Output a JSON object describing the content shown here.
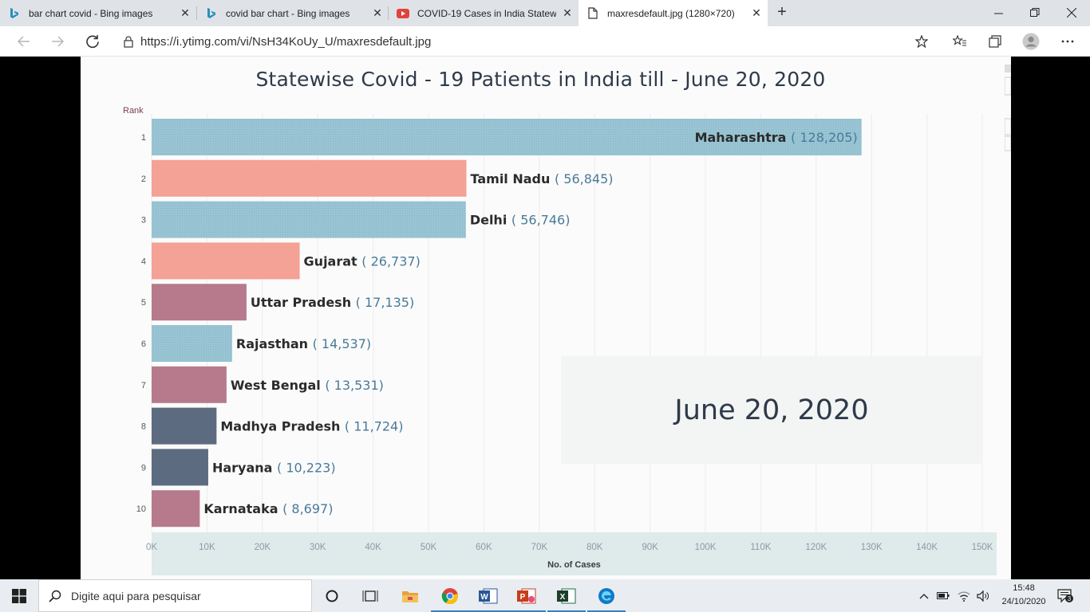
{
  "browser": {
    "tabs": [
      {
        "title": "bar chart covid - Bing images",
        "icon": "bing-icon",
        "active": false
      },
      {
        "title": "covid bar chart - Bing images",
        "icon": "bing-icon",
        "active": false
      },
      {
        "title": "COVID-19 Cases in India Statewi",
        "icon": "youtube-icon",
        "active": false
      },
      {
        "title": "maxresdefault.jpg (1280×720)",
        "icon": "page-icon",
        "active": true
      }
    ],
    "new_tab_label": "+",
    "url": "https://i.ytimg.com/vi/NsH34KoUy_U/maxresdefault.jpg",
    "colors": {
      "tabstrip": "#dfe3e8",
      "accent": "#3a7fc4"
    }
  },
  "chart_data": {
    "type": "bar",
    "orientation": "horizontal",
    "title": "Statewise Covid - 19 Patients in India till - June 20, 2020",
    "rank_header": "Rank",
    "xlabel": "No. of Cases",
    "xlim": [
      0,
      150000
    ],
    "xticks": [
      "0K",
      "10K",
      "20K",
      "30K",
      "40K",
      "50K",
      "60K",
      "70K",
      "80K",
      "90K",
      "100K",
      "110K",
      "120K",
      "130K",
      "140K",
      "150K"
    ],
    "bars": [
      {
        "rank": "1",
        "state": "Maharashtra",
        "value": 128205,
        "value_label": "( 128,205)",
        "color": "#98c4d4",
        "dotted": true
      },
      {
        "rank": "2",
        "state": "Tamil Nadu",
        "value": 56845,
        "value_label": "( 56,845)",
        "color": "#f4a196",
        "dotted": false
      },
      {
        "rank": "3",
        "state": "Delhi",
        "value": 56746,
        "value_label": "( 56,746)",
        "color": "#98c4d4",
        "dotted": true
      },
      {
        "rank": "4",
        "state": "Gujarat",
        "value": 26737,
        "value_label": "( 26,737)",
        "color": "#f4a196",
        "dotted": false
      },
      {
        "rank": "5",
        "state": "Uttar Pradesh",
        "value": 17135,
        "value_label": "( 17,135)",
        "color": "#b77a8c",
        "dotted": false
      },
      {
        "rank": "6",
        "state": "Rajasthan",
        "value": 14537,
        "value_label": "( 14,537)",
        "color": "#98c4d4",
        "dotted": true
      },
      {
        "rank": "7",
        "state": "West Bengal",
        "value": 13531,
        "value_label": "( 13,531)",
        "color": "#b77a8c",
        "dotted": false
      },
      {
        "rank": "8",
        "state": "Madhya Pradesh",
        "value": 11724,
        "value_label": "( 11,724)",
        "color": "#5c6b80",
        "dotted": false
      },
      {
        "rank": "9",
        "state": "Haryana",
        "value": 10223,
        "value_label": "( 10,223)",
        "color": "#5c6b80",
        "dotted": false
      },
      {
        "rank": "10",
        "state": "Karnataka",
        "value": 8697,
        "value_label": "( 8,697)",
        "color": "#b77a8c",
        "dotted": false
      }
    ],
    "date_label": "June 20, 2020",
    "grid": true
  },
  "taskbar": {
    "search_placeholder": "Digite aqui para pesquisar",
    "apps": [
      "cortana-icon",
      "task-view-icon",
      "file-explorer-icon",
      "chrome-icon",
      "word-icon",
      "powerpoint-icon",
      "excel-icon",
      "edge-icon"
    ],
    "time": "15:48",
    "date": "24/10/2020",
    "notification_count": "3"
  }
}
